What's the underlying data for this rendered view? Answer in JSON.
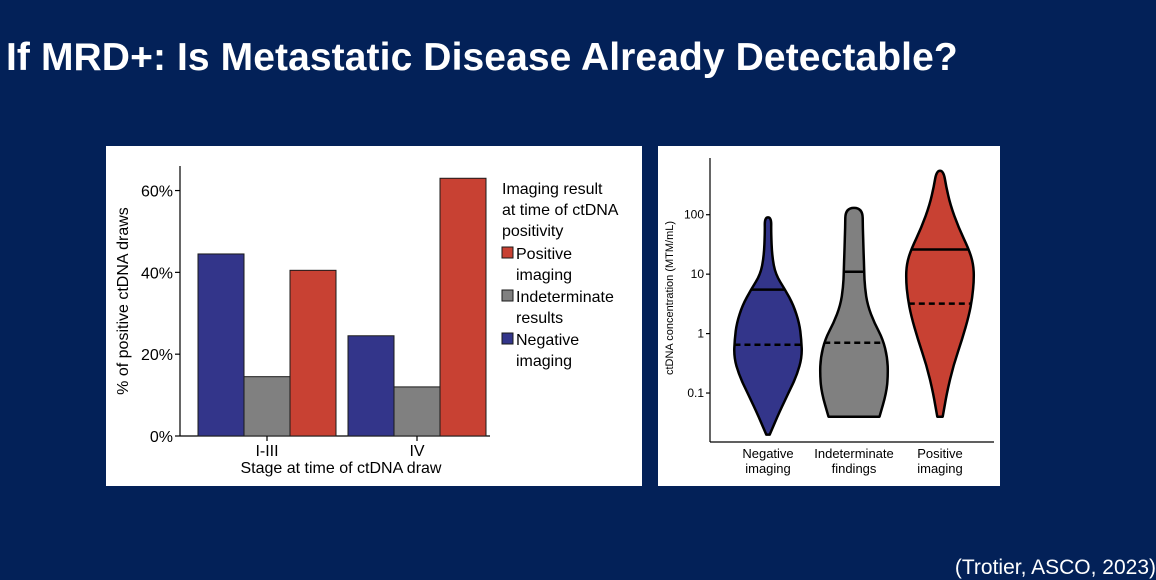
{
  "slide": {
    "title": "If MRD+: Is Metastatic Disease Already Detectable?",
    "citation": "(Trotier, ASCO, 2023)"
  },
  "colors": {
    "background": "#032158",
    "negative": "#33358a",
    "indeterminate": "#808080",
    "positive": "#c84133",
    "text": "#ffffff"
  },
  "chart_data": [
    {
      "type": "bar",
      "title": "",
      "xlabel": "Stage at time of ctDNA draw",
      "ylabel": "% of positive ctDNA draws",
      "categories": [
        "I-III",
        "IV"
      ],
      "ylim": [
        0,
        66
      ],
      "yticks": [
        0,
        20,
        40,
        60
      ],
      "ytick_labels": [
        "0%",
        "20%",
        "40%",
        "60%"
      ],
      "legend": {
        "title": [
          "Imaging result",
          "at time of ctDNA",
          "positivity"
        ],
        "placement": "right",
        "items": [
          {
            "lines": [
              "Positive",
              "imaging"
            ],
            "color": "#c84133"
          },
          {
            "lines": [
              "Indeterminate",
              "results"
            ],
            "color": "#808080"
          },
          {
            "lines": [
              "Negative",
              "imaging"
            ],
            "color": "#33358a"
          }
        ]
      },
      "series": [
        {
          "name": "Negative imaging",
          "color": "#33358a",
          "values": [
            44.5,
            24.5
          ]
        },
        {
          "name": "Indeterminate results",
          "color": "#808080",
          "values": [
            14.5,
            12
          ]
        },
        {
          "name": "Positive imaging",
          "color": "#c84133",
          "values": [
            40.5,
            63
          ]
        }
      ]
    },
    {
      "type": "violin",
      "xlabel": "",
      "ylabel": "ctDNA concentration (MTM/mL)",
      "yscale": "log",
      "ylim": [
        0.015,
        900
      ],
      "yticks": [
        0.1,
        1,
        10,
        100
      ],
      "ytick_labels": [
        "0.1",
        "1",
        "10",
        "100"
      ],
      "categories": [
        {
          "lines": [
            "Negative",
            "imaging"
          ],
          "color": "#33358a",
          "min": 0.02,
          "max": 90,
          "median": 0.65,
          "q3": 5.5,
          "shape": [
            [
              0.02,
              0.05
            ],
            [
              0.05,
              0.35
            ],
            [
              0.1,
              0.6
            ],
            [
              0.2,
              0.85
            ],
            [
              0.4,
              1.0
            ],
            [
              0.8,
              0.98
            ],
            [
              1.5,
              0.92
            ],
            [
              3,
              0.75
            ],
            [
              5.5,
              0.5
            ],
            [
              10,
              0.22
            ],
            [
              20,
              0.12
            ],
            [
              50,
              0.09
            ],
            [
              90,
              0.1
            ]
          ]
        },
        {
          "lines": [
            "Indeterminate",
            "findings"
          ],
          "color": "#808080",
          "min": 0.04,
          "max": 130,
          "median": 0.7,
          "q3": 11,
          "shape": [
            [
              0.04,
              0.75
            ],
            [
              0.1,
              0.95
            ],
            [
              0.2,
              1.0
            ],
            [
              0.4,
              0.98
            ],
            [
              0.8,
              0.85
            ],
            [
              1.5,
              0.6
            ],
            [
              3,
              0.4
            ],
            [
              6,
              0.32
            ],
            [
              11,
              0.3
            ],
            [
              25,
              0.28
            ],
            [
              60,
              0.26
            ],
            [
              130,
              0.25
            ]
          ]
        },
        {
          "lines": [
            "Positive",
            "imaging"
          ],
          "color": "#c84133",
          "min": 0.04,
          "max": 550,
          "median": 3.2,
          "q3": 26,
          "shape": [
            [
              0.04,
              0.08
            ],
            [
              0.1,
              0.2
            ],
            [
              0.3,
              0.4
            ],
            [
              0.8,
              0.65
            ],
            [
              2,
              0.85
            ],
            [
              4,
              0.95
            ],
            [
              8,
              1.0
            ],
            [
              15,
              0.98
            ],
            [
              26,
              0.85
            ],
            [
              60,
              0.55
            ],
            [
              150,
              0.3
            ],
            [
              300,
              0.18
            ],
            [
              550,
              0.1
            ]
          ]
        }
      ]
    }
  ]
}
